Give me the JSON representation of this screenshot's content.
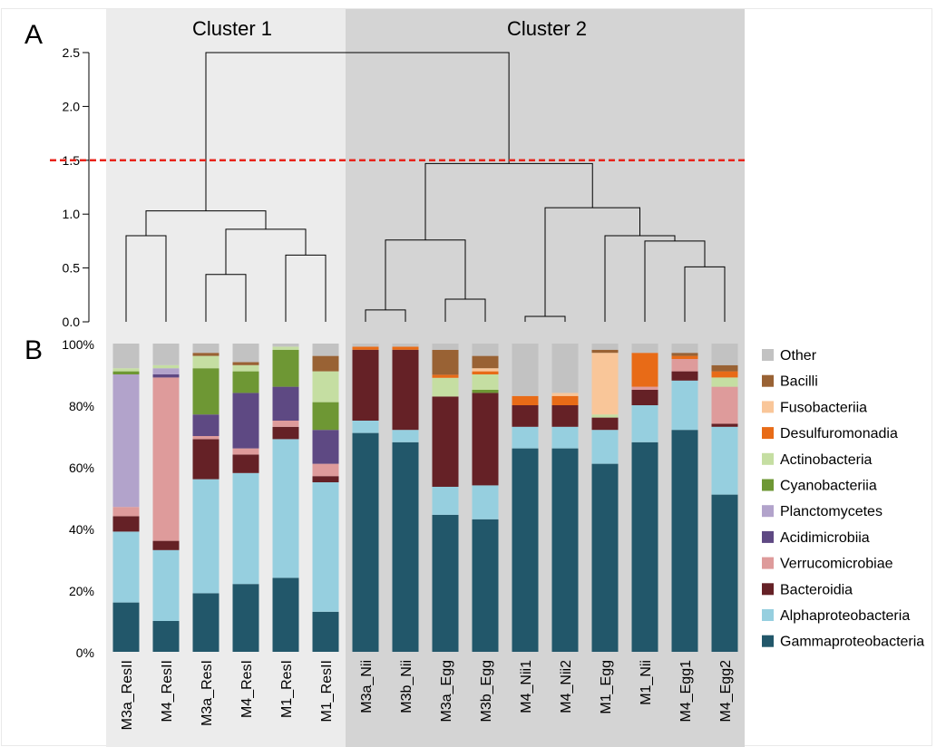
{
  "panel_labels": {
    "a": "A",
    "b": "B"
  },
  "clusters": [
    {
      "label": "Cluster 1",
      "color": "#ececec"
    },
    {
      "label": "Cluster 2",
      "color": "#d4d4d4"
    }
  ],
  "chart_data": [
    {
      "type": "dendrogram",
      "ylim": [
        0,
        2.5
      ],
      "y_ticks": [
        "0.0",
        "0.5",
        "1.0",
        "1.5",
        "2.0",
        "2.5"
      ],
      "cut_height": 1.5,
      "cut_line_color": "#e8241b",
      "leaves": [
        "M3a_ResII",
        "M4_ResII",
        "M3a_ResI",
        "M4_ResI",
        "M1_ResI",
        "M1_ResII",
        "M3a_Nii",
        "M3b_Nii",
        "M3a_Egg",
        "M3b_Egg",
        "M4_Nii1",
        "M4_Nii2",
        "M1_Egg",
        "M1_Nii",
        "M4_Egg1",
        "M4_Egg2"
      ],
      "merges": [
        {
          "left": "M3a_ResII",
          "right": "M4_ResII",
          "height": 0.8
        },
        {
          "left": "M3a_ResI",
          "right": "M4_ResI",
          "height": 0.44
        },
        {
          "left": "M1_ResI",
          "right": "M1_ResII",
          "height": 0.62
        },
        {
          "left": 1,
          "right": 2,
          "height": 0.86
        },
        {
          "left": 0,
          "right": 3,
          "height": 1.03
        },
        {
          "left": "M3a_Nii",
          "right": "M3b_Nii",
          "height": 0.11
        },
        {
          "left": "M3a_Egg",
          "right": "M3b_Egg",
          "height": 0.21
        },
        {
          "left": 5,
          "right": 6,
          "height": 0.76
        },
        {
          "left": "M4_Nii1",
          "right": "M4_Nii2",
          "height": 0.05
        },
        {
          "left": "M4_Egg1",
          "right": "M4_Egg2",
          "height": 0.51
        },
        {
          "left": "M1_Nii",
          "right": 9,
          "height": 0.75
        },
        {
          "left": "M1_Egg",
          "right": 10,
          "height": 0.8
        },
        {
          "left": 8,
          "right": 11,
          "height": 1.06
        },
        {
          "left": 7,
          "right": 12,
          "height": 1.47
        },
        {
          "left": 4,
          "right": 13,
          "height": 2.5
        }
      ]
    },
    {
      "type": "bar",
      "stacked": true,
      "ylim": [
        0,
        100
      ],
      "y_ticks": [
        "0%",
        "20%",
        "40%",
        "60%",
        "80%",
        "100%"
      ],
      "categories": [
        "M3a_ResII",
        "M4_ResII",
        "M3a_ResI",
        "M4_ResI",
        "M1_ResI",
        "M1_ResII",
        "M3a_Nii",
        "M3b_Nii",
        "M3a_Egg",
        "M3b_Egg",
        "M4_Nii1",
        "M4_Nii2",
        "M1_Egg",
        "M1_Nii",
        "M4_Egg1",
        "M4_Egg2"
      ],
      "legend_position": "right",
      "series": [
        {
          "name": "Gammaproteobacteria",
          "color": "#22576a",
          "values": [
            16,
            10,
            19,
            22,
            24,
            13,
            71,
            68,
            44,
            43,
            66,
            66,
            61,
            68,
            72,
            51
          ]
        },
        {
          "name": "Alphaproteobacteria",
          "color": "#96cfdf",
          "values": [
            23,
            23,
            37,
            36,
            45,
            42,
            4,
            4,
            9,
            11,
            7,
            7,
            11,
            12,
            16,
            22
          ]
        },
        {
          "name": "Bacteroidia",
          "color": "#652126",
          "values": [
            5,
            3,
            13,
            6,
            4,
            2,
            23,
            26,
            29,
            30,
            7,
            7,
            4,
            5,
            3,
            1
          ]
        },
        {
          "name": "Verrucomicrobiae",
          "color": "#de9b9b",
          "values": [
            3,
            53,
            1,
            2,
            2,
            4,
            0,
            0,
            0,
            0,
            0,
            0,
            0,
            1,
            4,
            12
          ]
        },
        {
          "name": "Acidimicrobiia",
          "color": "#5e4983",
          "values": [
            0,
            1,
            7,
            18,
            11,
            11,
            0,
            0,
            0,
            0,
            0,
            0,
            0,
            0,
            0,
            0
          ]
        },
        {
          "name": "Planctomycetes",
          "color": "#b2a3cb",
          "values": [
            43,
            2,
            0,
            0,
            0,
            0,
            0,
            0,
            0,
            0,
            0,
            0,
            0,
            0,
            0,
            0
          ]
        },
        {
          "name": "Cyanobacteriia",
          "color": "#6e9734",
          "values": [
            1,
            0,
            15,
            7,
            12,
            9,
            0,
            0,
            0,
            1,
            0,
            0,
            0,
            0,
            0,
            0
          ]
        },
        {
          "name": "Actinobacteria",
          "color": "#c5dea2",
          "values": [
            1,
            1,
            4,
            2,
            1,
            10,
            0,
            0,
            6,
            5,
            0,
            0,
            1,
            0,
            0,
            3
          ]
        },
        {
          "name": "Desulfuromonadia",
          "color": "#e86b17",
          "values": [
            0,
            0,
            0,
            0,
            0,
            0,
            1,
            1,
            1,
            1,
            3,
            3,
            0,
            11,
            1,
            2
          ]
        },
        {
          "name": "Fusobacteriia",
          "color": "#f9c699",
          "values": [
            0,
            0,
            0,
            0,
            0,
            0,
            0,
            0,
            0,
            1,
            0,
            1,
            20,
            0,
            0,
            0
          ]
        },
        {
          "name": "Bacilli",
          "color": "#996234",
          "values": [
            0,
            0,
            1,
            1,
            0,
            5,
            0,
            0,
            8,
            4,
            0,
            0,
            1,
            0,
            1,
            2
          ]
        },
        {
          "name": "Other",
          "color": "#c2c2c2",
          "values": [
            8,
            7,
            3,
            6,
            1,
            4,
            1,
            1,
            2,
            4,
            17,
            16,
            2,
            3,
            3,
            7
          ]
        }
      ]
    }
  ]
}
